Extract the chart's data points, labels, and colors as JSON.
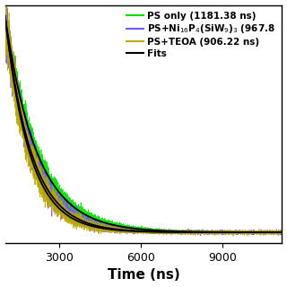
{
  "title": "",
  "xlabel": "Time (ns)",
  "ylabel": "",
  "xlim": [
    1000,
    11200
  ],
  "ylim": [
    -0.05,
    1.05
  ],
  "tau_ps": 1181.38,
  "tau_ni": 967.8,
  "tau_teoa": 906.22,
  "color_ps": "#00dd00",
  "color_ni": "#7755ff",
  "color_teoa": "#bbaa00",
  "color_fit": "#000000",
  "noise_amp": 0.04,
  "legend_labels": [
    "PS only (1181.38 ns)",
    "PS+Ni$_{16}$P$_4$(SiW$_9$)$_3$ (967.8",
    "PS+TEOA (906.22 ns)",
    "Fits"
  ],
  "xticks": [
    3000,
    6000,
    9000
  ],
  "background_color": "#ffffff",
  "xlabel_fontsize": 11,
  "legend_fontsize": 7.5,
  "tick_fontsize": 9
}
